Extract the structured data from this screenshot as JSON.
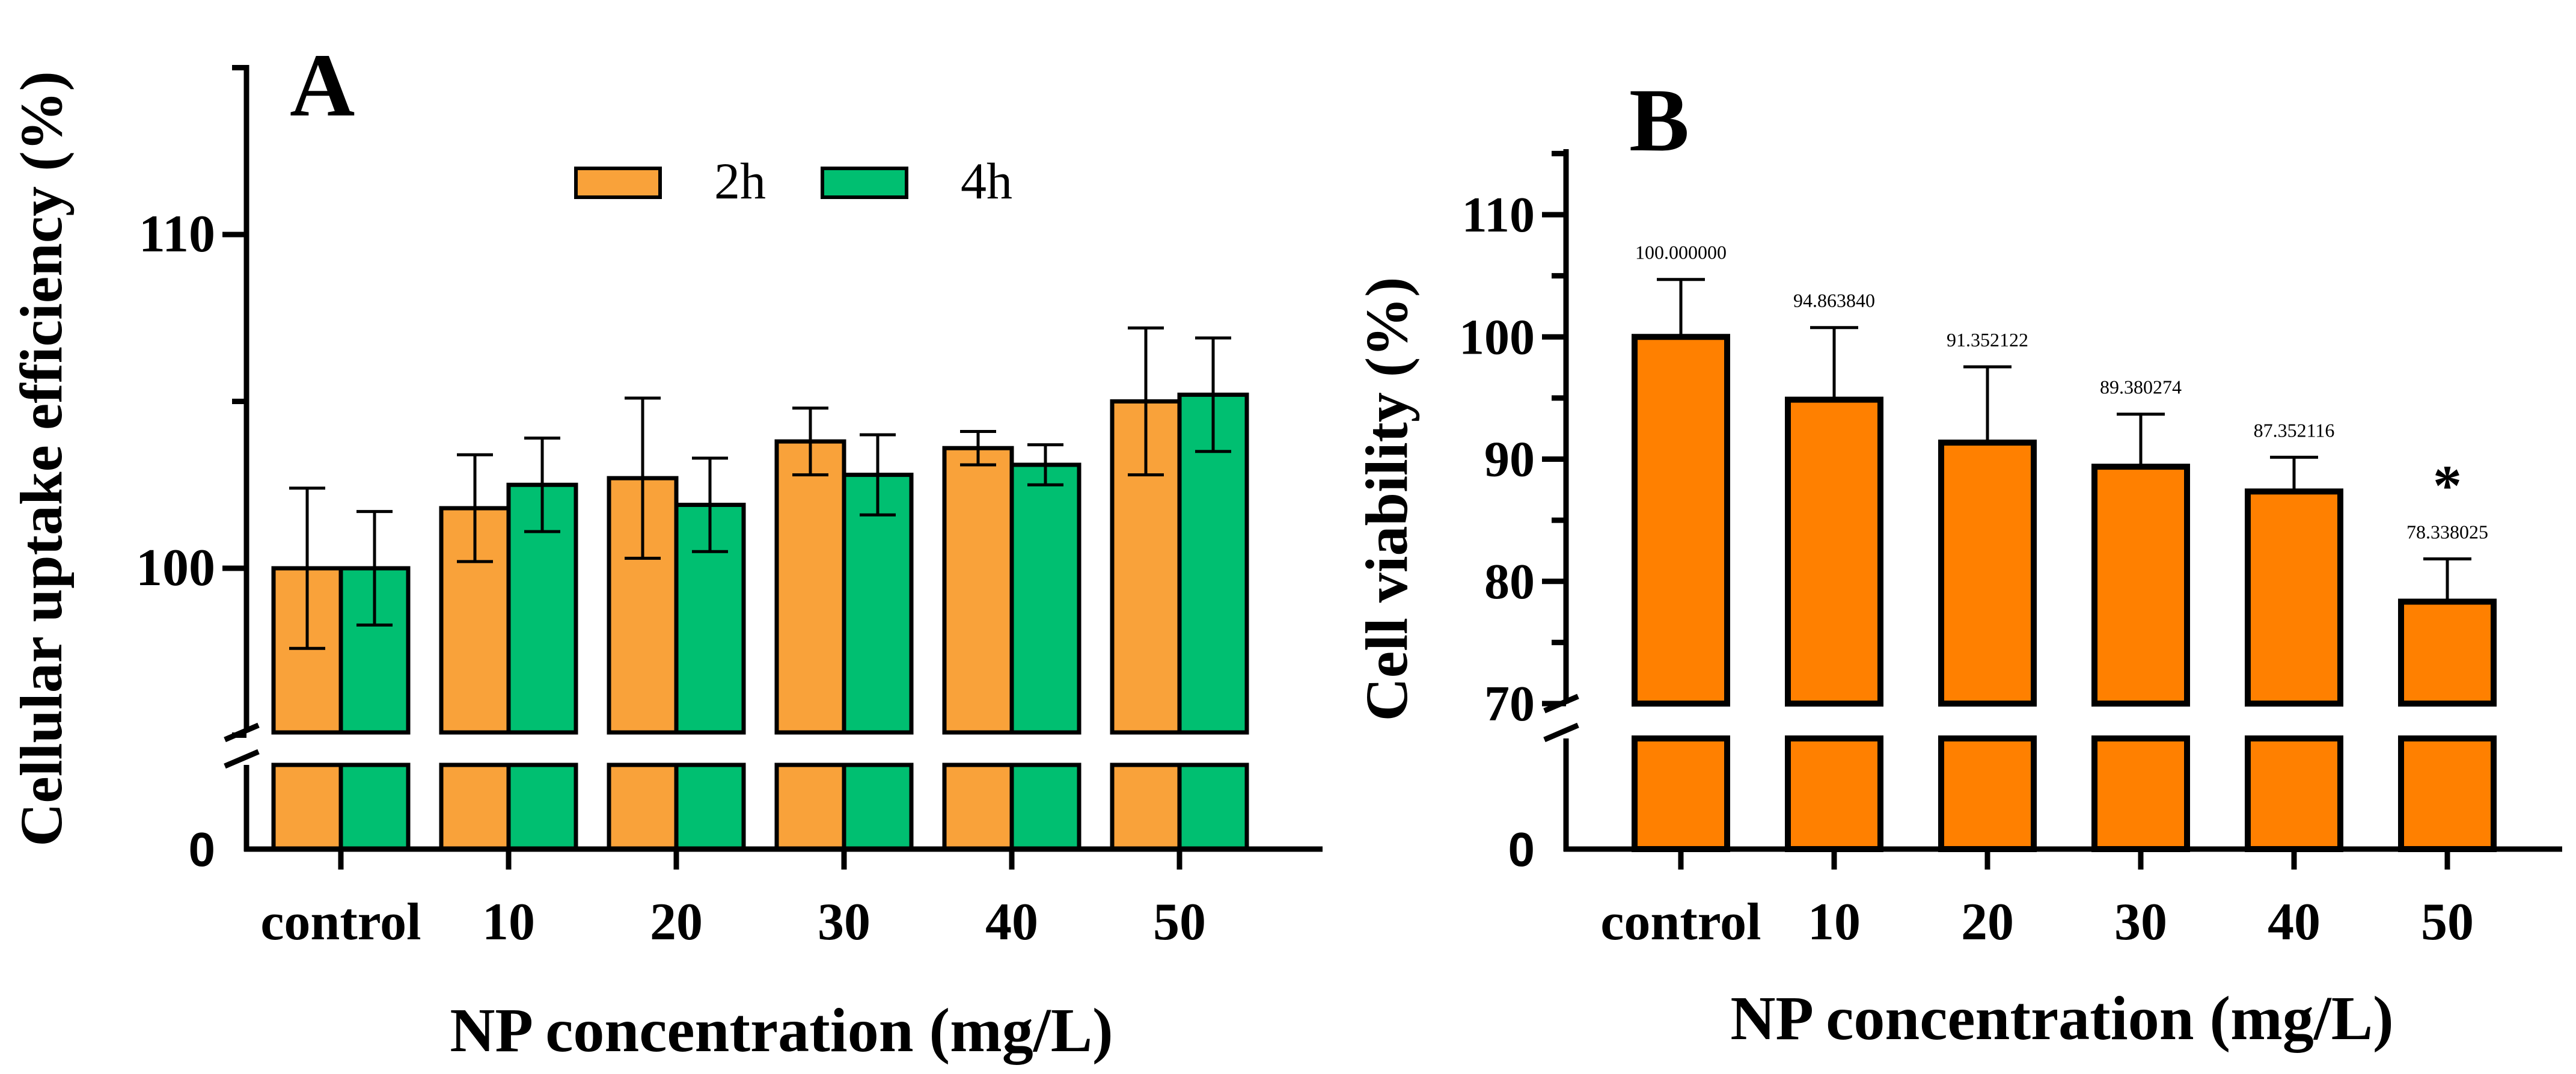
{
  "chart_data": [
    {
      "type": "bar",
      "panel_label": "A",
      "xlabel": "NP concentration (mg/L)",
      "ylabel": "Cellular uptake efficiency (%)",
      "categories": [
        "control",
        "10",
        "20",
        "30",
        "40",
        "50"
      ],
      "series": [
        {
          "name": "2h",
          "color": "#F9A23A",
          "values": [
            100.0,
            101.8,
            102.7,
            103.8,
            103.6,
            105.0
          ],
          "error": [
            2.4,
            1.6,
            2.4,
            1.0,
            0.5,
            2.2
          ]
        },
        {
          "name": "4h",
          "color": "#00BF71",
          "values": [
            100.0,
            102.5,
            101.9,
            102.8,
            103.1,
            105.2
          ],
          "error": [
            1.7,
            1.4,
            1.4,
            1.2,
            0.6,
            1.7
          ]
        }
      ],
      "yticks": [
        "100",
        "110"
      ],
      "break_tick": "0",
      "axis_break": true,
      "ylim": [
        95,
        115
      ],
      "legend": {
        "position": "top-center",
        "labels": [
          "2h",
          "4h"
        ]
      }
    },
    {
      "type": "bar",
      "panel_label": "B",
      "xlabel": "NP concentration (mg/L)",
      "ylabel": "Cell viability (%)",
      "categories": [
        "control",
        "10",
        "20",
        "30",
        "40",
        "50"
      ],
      "series": [
        {
          "name": "Cell viability",
          "color": "#FF8000",
          "values": [
            100.0,
            94.86384,
            91.352122,
            89.380274,
            87.352116,
            78.338025
          ],
          "error": [
            4.7,
            5.9,
            6.2,
            4.3,
            2.8,
            3.5
          ]
        }
      ],
      "value_labels": [
        "100.000000",
        "94.863840",
        "91.352122",
        "89.380274",
        "87.352116",
        "78.338025"
      ],
      "significance": [
        {
          "category": "50",
          "marker": "*"
        }
      ],
      "yticks": [
        "70",
        "80",
        "90",
        "100",
        "110"
      ],
      "break_tick": "0",
      "axis_break": true,
      "ylim": [
        68,
        115
      ]
    }
  ]
}
